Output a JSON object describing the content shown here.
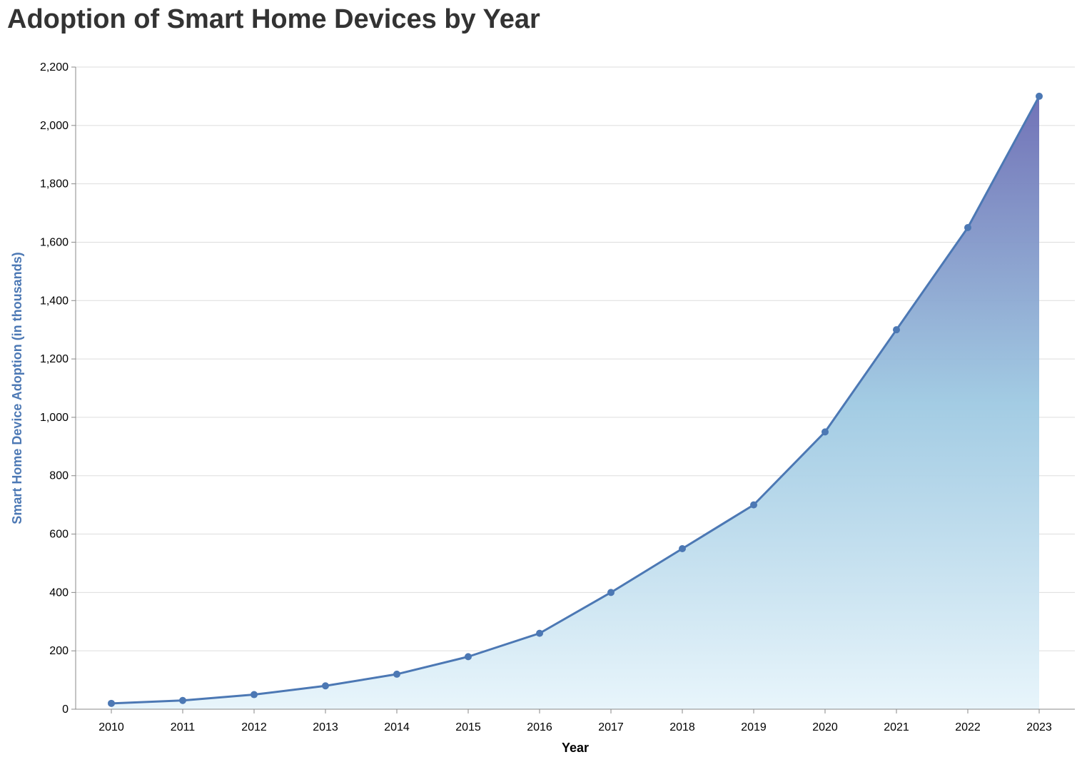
{
  "chart_data": {
    "type": "area",
    "title": "Adoption of Smart Home Devices by Year",
    "xlabel": "Year",
    "ylabel": "Smart Home Device Adoption (in thousands)",
    "x": [
      "2010",
      "2011",
      "2012",
      "2013",
      "2014",
      "2015",
      "2016",
      "2017",
      "2018",
      "2019",
      "2020",
      "2021",
      "2022",
      "2023"
    ],
    "y": [
      20,
      30,
      50,
      80,
      120,
      180,
      260,
      400,
      550,
      700,
      950,
      1300,
      1650,
      2100
    ],
    "ylim": [
      0,
      2200
    ],
    "yticks": [
      0,
      200,
      400,
      600,
      800,
      1000,
      1200,
      1400,
      1600,
      1800,
      2000,
      2200
    ],
    "grid": true,
    "markers": true,
    "colors": {
      "line": "#4C78B4",
      "area_top": "#6A6BB3",
      "area_bottom": "#E8F5FB",
      "ylabel": "#4C78B4",
      "grid": "#DDDDDD",
      "axis": "#888888"
    }
  }
}
